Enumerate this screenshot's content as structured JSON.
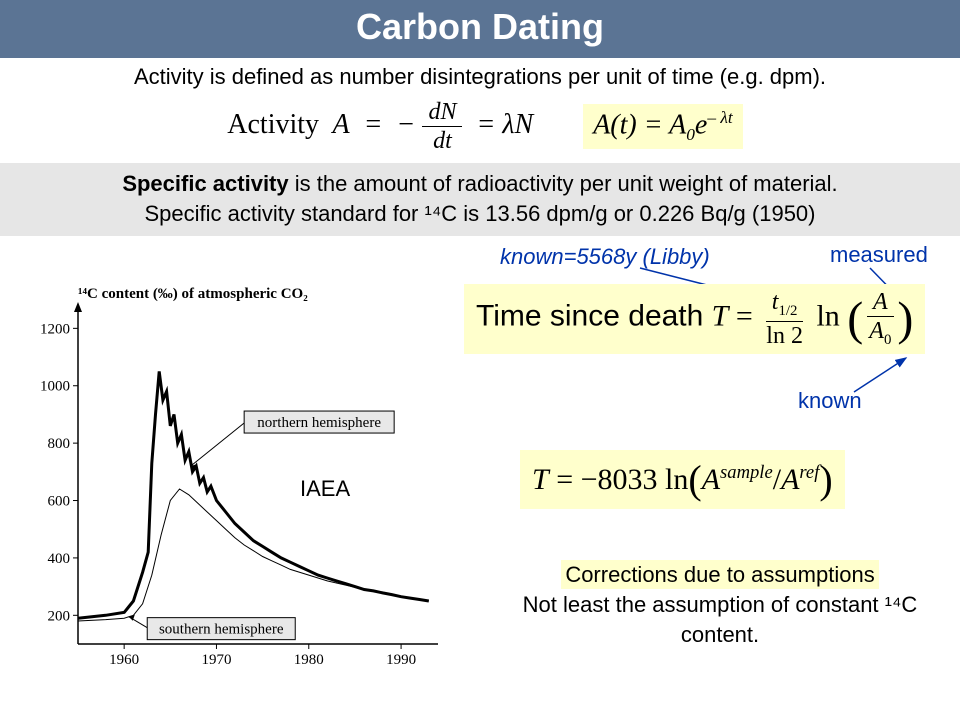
{
  "title": "Carbon Dating",
  "activity_def": "Activity is defined as number disintegrations per unit of time (e.g. dpm).",
  "eq1": {
    "label": "Activity",
    "sym": "A",
    "rhs1_num": "dN",
    "rhs1_den": "dt",
    "rhs2": "λN"
  },
  "eq2": {
    "lhs": "A(t)",
    "base": "A",
    "sub0": "0",
    "exp": "e",
    "exp_sup": "– λt"
  },
  "specific": {
    "line1a": "Specific activity",
    "line1b": " is the amount of radioactivity per unit weight of material.",
    "line2": "Specific activity standard for ¹⁴C is 13.56 dpm/g or 0.226 Bq/g (1950)"
  },
  "ann_known_libby": "known=5568y (Libby)",
  "ann_measured": "measured",
  "ann_known": "known",
  "formula_time": {
    "prefix": "Time since death ",
    "T": "T",
    "num": "t",
    "num_sub": "1/2",
    "den": "ln 2",
    "ln": "ln",
    "A": "A",
    "A0": "A",
    "A0_sub": "0"
  },
  "formula_t8033": {
    "T": "T",
    "coef": "−8033",
    "ln": "ln",
    "As": "A",
    "As_sup": "sample",
    "slash": "/",
    "Ar": "A",
    "Ar_sup": "ref"
  },
  "corrections": {
    "l1": "Corrections due to assumptions",
    "l2": "Not least the assumption of constant ¹⁴C content."
  },
  "iaea": "IAEA",
  "chart": {
    "ylabel": "¹⁴C content (‰) of atmospheric CO₂",
    "yticks": [
      200,
      400,
      600,
      800,
      1000,
      1200
    ],
    "ylim": [
      100,
      1250
    ],
    "xticks": [
      1960,
      1970,
      1980,
      1990
    ],
    "xlim": [
      1955,
      1994
    ],
    "label_north": "northern hemisphere",
    "label_south": "southern hemisphere",
    "northern": {
      "x": [
        1955,
        1958,
        1960,
        1961,
        1962,
        1962.6,
        1963,
        1963.4,
        1963.8,
        1964.2,
        1964.6,
        1965,
        1965.4,
        1965.8,
        1966.2,
        1966.6,
        1967,
        1967.4,
        1967.8,
        1968.2,
        1968.6,
        1969,
        1969.4,
        1970,
        1971,
        1972,
        1973,
        1974,
        1975,
        1976,
        1977,
        1978,
        1979,
        1980,
        1981,
        1982,
        1983,
        1984,
        1985,
        1986,
        1987,
        1988,
        1989,
        1990,
        1991,
        1992,
        1993
      ],
      "y": [
        190,
        200,
        210,
        250,
        350,
        420,
        730,
        900,
        1050,
        950,
        980,
        860,
        900,
        800,
        830,
        740,
        770,
        700,
        720,
        660,
        680,
        630,
        650,
        600,
        560,
        520,
        490,
        460,
        440,
        420,
        400,
        385,
        370,
        355,
        340,
        330,
        320,
        310,
        300,
        290,
        285,
        278,
        272,
        265,
        260,
        255,
        250
      ],
      "color": "#000000",
      "width": 3
    },
    "southern": {
      "x": [
        1955,
        1958,
        1960,
        1961,
        1962,
        1963,
        1964,
        1965,
        1966,
        1967,
        1968,
        1969,
        1970,
        1971,
        1972,
        1973,
        1974,
        1975,
        1976,
        1977,
        1978,
        1980,
        1982,
        1984,
        1986,
        1988,
        1990,
        1992,
        1993
      ],
      "y": [
        180,
        185,
        190,
        200,
        240,
        340,
        480,
        600,
        640,
        620,
        590,
        560,
        530,
        500,
        470,
        445,
        425,
        405,
        390,
        375,
        360,
        340,
        320,
        305,
        290,
        278,
        265,
        255,
        250
      ],
      "color": "#000000",
      "width": 1
    },
    "bg": "#ffffff"
  },
  "colors": {
    "title_bg": "#5b7494",
    "title_fg": "#ffffff",
    "highlight_bg": "#ffffcc",
    "specific_bg": "#e6e6e6",
    "annotation": "#0033aa"
  }
}
